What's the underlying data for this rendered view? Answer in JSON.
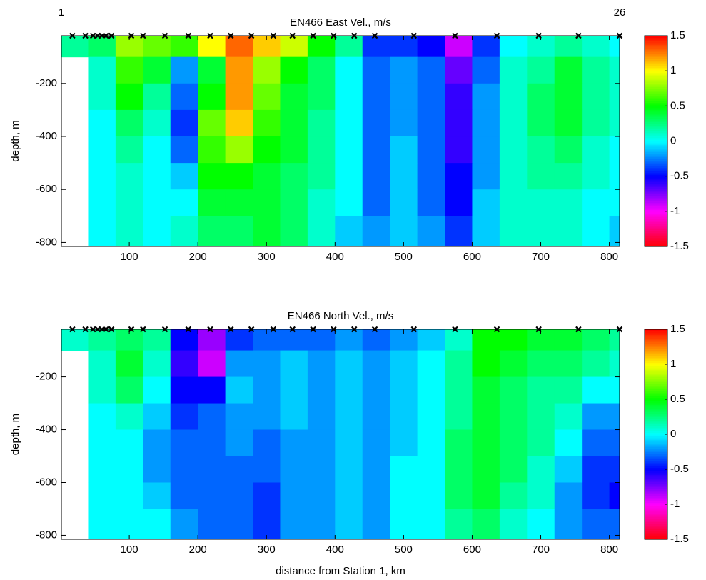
{
  "chart_data": [
    {
      "type": "heatmap",
      "title": "EN466 East Vel., m/s",
      "ylabel": "depth, m",
      "x_edges": [
        1,
        40,
        80,
        120,
        160,
        200,
        240,
        280,
        320,
        360,
        400,
        440,
        480,
        520,
        560,
        600,
        640,
        680,
        720,
        760,
        800,
        815
      ],
      "y_edges": [
        -20,
        -100,
        -200,
        -300,
        -400,
        -500,
        -600,
        -700,
        -815
      ],
      "z": [
        [
          0.2,
          0.3,
          0.8,
          0.7,
          0.6,
          1.0,
          1.3,
          1.1,
          0.9,
          0.5,
          0.2,
          -0.4,
          -0.4,
          -0.5,
          -0.9,
          -0.4,
          0,
          0.1,
          0.2,
          0.1,
          0
        ],
        [
          null,
          0.1,
          0.6,
          0.4,
          -0.2,
          0.4,
          1.2,
          0.8,
          0.5,
          0.3,
          0,
          -0.3,
          -0.2,
          -0.3,
          -0.7,
          -0.3,
          0.1,
          0.2,
          0.4,
          0.2,
          0.1
        ],
        [
          null,
          0.1,
          0.5,
          0.2,
          -0.3,
          0.5,
          1.2,
          0.7,
          0.4,
          0.3,
          0,
          -0.3,
          -0.2,
          -0.3,
          -0.6,
          -0.2,
          0.1,
          0.3,
          0.4,
          0.2,
          0.1
        ],
        [
          null,
          0,
          0.3,
          0.1,
          -0.4,
          0.7,
          1.1,
          0.6,
          0.4,
          0.2,
          0,
          -0.3,
          -0.2,
          -0.3,
          -0.6,
          -0.2,
          0.1,
          0.3,
          0.4,
          0.2,
          0.1
        ],
        [
          null,
          0,
          0.2,
          0,
          -0.3,
          0.6,
          0.8,
          0.5,
          0.4,
          0.2,
          0,
          -0.3,
          -0.1,
          -0.3,
          -0.6,
          -0.2,
          0.1,
          0.2,
          0.3,
          0.1,
          0
        ],
        [
          null,
          0,
          0.1,
          0,
          -0.1,
          0.5,
          0.5,
          0.4,
          0.3,
          0.2,
          0,
          -0.3,
          -0.1,
          -0.3,
          -0.5,
          -0.2,
          0.1,
          0.2,
          0.2,
          0.1,
          0
        ],
        [
          null,
          0,
          0.1,
          0,
          0,
          0.4,
          0.4,
          0.4,
          0.3,
          0.1,
          0,
          -0.3,
          -0.1,
          -0.3,
          -0.5,
          -0.1,
          0.1,
          0.1,
          0.1,
          0,
          0
        ],
        [
          null,
          0,
          0.1,
          0,
          0.1,
          0.3,
          0.3,
          0.4,
          0.3,
          0.1,
          -0.1,
          -0.2,
          -0.1,
          -0.2,
          -0.4,
          -0.1,
          0.1,
          0.1,
          0.1,
          0,
          -0.1
        ]
      ],
      "xlim": [
        1,
        815
      ],
      "ylim": [
        -815,
        -20
      ],
      "xticks": [
        100,
        200,
        300,
        400,
        500,
        600,
        700,
        800
      ],
      "yticks": [
        -200,
        -400,
        -600,
        -800
      ],
      "colorbar": {
        "clim": [
          -1.5,
          1.5
        ],
        "ticks": [
          1.5,
          1,
          0.5,
          0,
          -0.5,
          -1,
          -1.5
        ],
        "colors": [
          "#ff0000",
          "#ff00ff",
          "#0000ff",
          "#00ffff",
          "#00ff00",
          "#ffff00",
          "#ff0000"
        ]
      },
      "markers": {
        "x": [
          17,
          36,
          47,
          54,
          60,
          66,
          74,
          103,
          120,
          152,
          186,
          218,
          248,
          278,
          310,
          338,
          368,
          398,
          428,
          458,
          515,
          575,
          636,
          697,
          755,
          815
        ],
        "color": "#000000"
      },
      "annotations": [
        {
          "text": "1",
          "x": 1
        },
        {
          "text": "26",
          "x": 815
        }
      ]
    },
    {
      "type": "heatmap",
      "title": "EN466 North Vel., m/s",
      "ylabel": "depth, m",
      "xlabel": "distance from Station 1, km",
      "x_edges": [
        1,
        40,
        80,
        120,
        160,
        200,
        240,
        280,
        320,
        360,
        400,
        440,
        480,
        520,
        560,
        600,
        640,
        680,
        720,
        760,
        800,
        815
      ],
      "y_edges": [
        -20,
        -100,
        -200,
        -300,
        -400,
        -500,
        -600,
        -700,
        -815
      ],
      "z": [
        [
          0.1,
          0.2,
          0.3,
          0.2,
          -0.5,
          -0.8,
          -0.4,
          -0.3,
          -0.3,
          -0.3,
          -0.2,
          -0.3,
          -0.2,
          -0.1,
          0.1,
          0.5,
          0.5,
          0.4,
          0.4,
          0.3,
          0.2
        ],
        [
          null,
          0.1,
          0.4,
          0.1,
          -0.6,
          -0.9,
          -0.2,
          -0.2,
          -0.1,
          -0.2,
          -0.1,
          -0.2,
          -0.1,
          0,
          0.2,
          0.5,
          0.4,
          0.3,
          0.3,
          0.2,
          0.1
        ],
        [
          null,
          0.1,
          0.3,
          0,
          -0.5,
          -0.5,
          -0.1,
          -0.2,
          -0.1,
          -0.2,
          -0.1,
          -0.2,
          -0.1,
          0,
          0.2,
          0.4,
          0.3,
          0.2,
          0.2,
          0,
          0
        ],
        [
          null,
          0,
          0.1,
          -0.1,
          -0.4,
          -0.3,
          -0.2,
          -0.2,
          -0.1,
          -0.2,
          -0.1,
          -0.2,
          -0.1,
          0,
          0.2,
          0.4,
          0.3,
          0.2,
          0.1,
          -0.2,
          -0.2
        ],
        [
          null,
          0,
          0,
          -0.2,
          -0.3,
          -0.3,
          -0.2,
          -0.3,
          -0.2,
          -0.2,
          -0.1,
          -0.2,
          -0.1,
          0,
          0.3,
          0.4,
          0.3,
          0.2,
          0,
          -0.3,
          -0.3
        ],
        [
          null,
          0,
          0,
          -0.2,
          -0.3,
          -0.3,
          -0.3,
          -0.3,
          -0.2,
          -0.2,
          -0.1,
          -0.2,
          0,
          0,
          0.3,
          0.4,
          0.3,
          0.1,
          -0.1,
          -0.4,
          -0.4
        ],
        [
          null,
          0,
          0,
          -0.1,
          -0.3,
          -0.3,
          -0.3,
          -0.4,
          -0.2,
          -0.2,
          -0.1,
          -0.2,
          0,
          0,
          0.3,
          0.4,
          0.2,
          0.1,
          -0.2,
          -0.4,
          -0.5
        ],
        [
          null,
          0,
          0,
          0,
          -0.2,
          -0.3,
          -0.3,
          -0.4,
          -0.2,
          -0.2,
          -0.1,
          -0.2,
          0,
          0,
          0.2,
          0.3,
          0.1,
          0,
          -0.2,
          -0.3,
          -0.3
        ]
      ],
      "xlim": [
        1,
        815
      ],
      "ylim": [
        -815,
        -20
      ],
      "xticks": [
        100,
        200,
        300,
        400,
        500,
        600,
        700,
        800
      ],
      "yticks": [
        -200,
        -400,
        -600,
        -800
      ],
      "colorbar": {
        "clim": [
          -1.5,
          1.5
        ],
        "ticks": [
          1.5,
          1,
          0.5,
          0,
          -0.5,
          -1,
          -1.5
        ],
        "colors": [
          "#ff0000",
          "#ff00ff",
          "#0000ff",
          "#00ffff",
          "#00ff00",
          "#ffff00",
          "#ff0000"
        ]
      },
      "markers": {
        "x": [
          17,
          36,
          47,
          54,
          60,
          66,
          74,
          103,
          120,
          152,
          186,
          218,
          248,
          278,
          310,
          338,
          368,
          398,
          428,
          458,
          515,
          575,
          636,
          697,
          755,
          815
        ],
        "color": "#000000"
      }
    }
  ]
}
